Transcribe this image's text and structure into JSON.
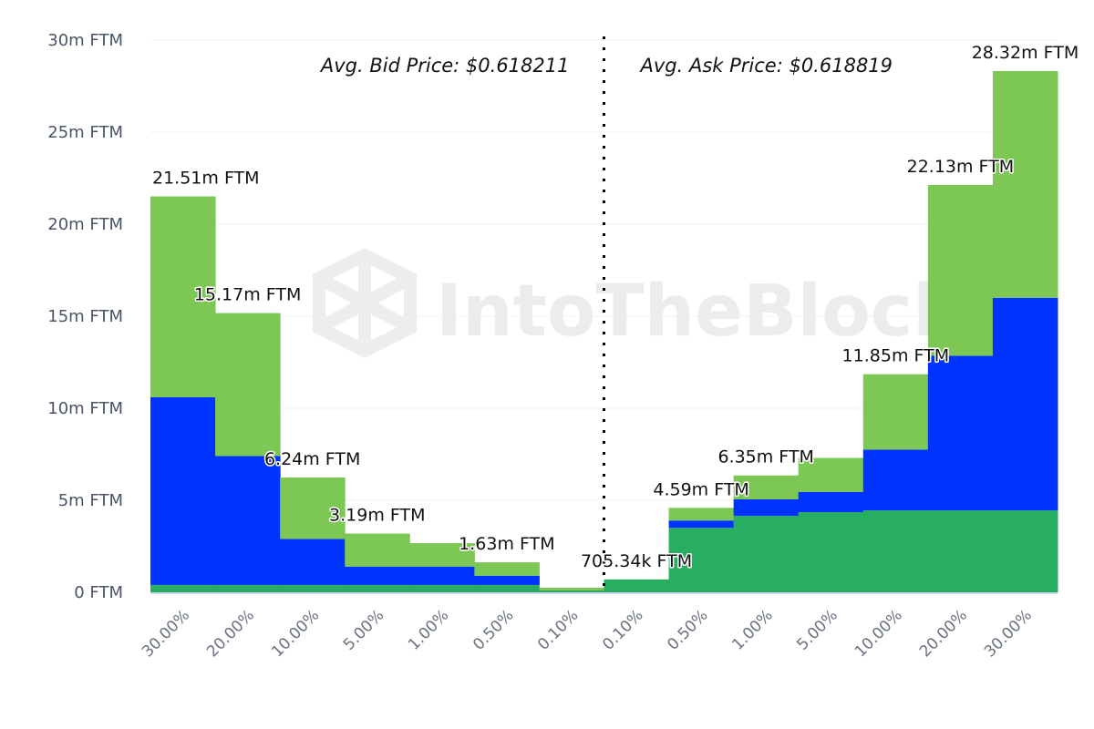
{
  "chart_data": {
    "type": "bar",
    "stacked": true,
    "categories": [
      "30.00%",
      "20.00%",
      "10.00%",
      "5.00%",
      "1.00%",
      "0.50%",
      "0.10%",
      "0.10%",
      "0.50%",
      "1.00%",
      "5.00%",
      "10.00%",
      "20.00%",
      "30.00%"
    ],
    "sides": [
      "bid",
      "bid",
      "bid",
      "bid",
      "bid",
      "bid",
      "bid",
      "ask",
      "ask",
      "ask",
      "ask",
      "ask",
      "ask",
      "ask"
    ],
    "series": [
      {
        "color": "#27ae60",
        "values": [
          0.4,
          0.4,
          0.4,
          0.4,
          0.4,
          0.4,
          0.1,
          0.7,
          3.5,
          4.15,
          4.35,
          4.45,
          4.45,
          4.45
        ]
      },
      {
        "color": "#0033ff",
        "values": [
          10.2,
          7.0,
          2.5,
          1.0,
          1.0,
          0.5,
          0,
          0,
          0.4,
          0.9,
          1.1,
          3.3,
          8.4,
          11.55
        ]
      },
      {
        "color": "#7dc855",
        "values": [
          10.91,
          7.77,
          3.34,
          1.79,
          1.27,
          0.73,
          0.15,
          0.005,
          0.69,
          1.3,
          1.85,
          4.1,
          9.28,
          12.32
        ]
      }
    ],
    "totals_labels": [
      "21.51m FTM",
      "15.17m FTM",
      "6.24m FTM",
      "3.19m FTM",
      "",
      "1.63m FTM",
      "",
      "705.34k FTM",
      "4.59m FTM",
      "6.35m FTM",
      "",
      "11.85m FTM",
      "22.13m FTM",
      "28.32m FTM"
    ],
    "y_ticks": [
      "0 FTM",
      "5m FTM",
      "10m FTM",
      "15m FTM",
      "20m FTM",
      "25m FTM",
      "30m FTM"
    ],
    "ylim": [
      0,
      30
    ],
    "y_unit": "m FTM",
    "grid": true,
    "annotations": {
      "bid": "Avg. Bid Price: $0.618211",
      "ask": "Avg. Ask Price: $0.618819"
    },
    "divider": "dotted-center"
  },
  "watermark": "IntoTheBlock"
}
